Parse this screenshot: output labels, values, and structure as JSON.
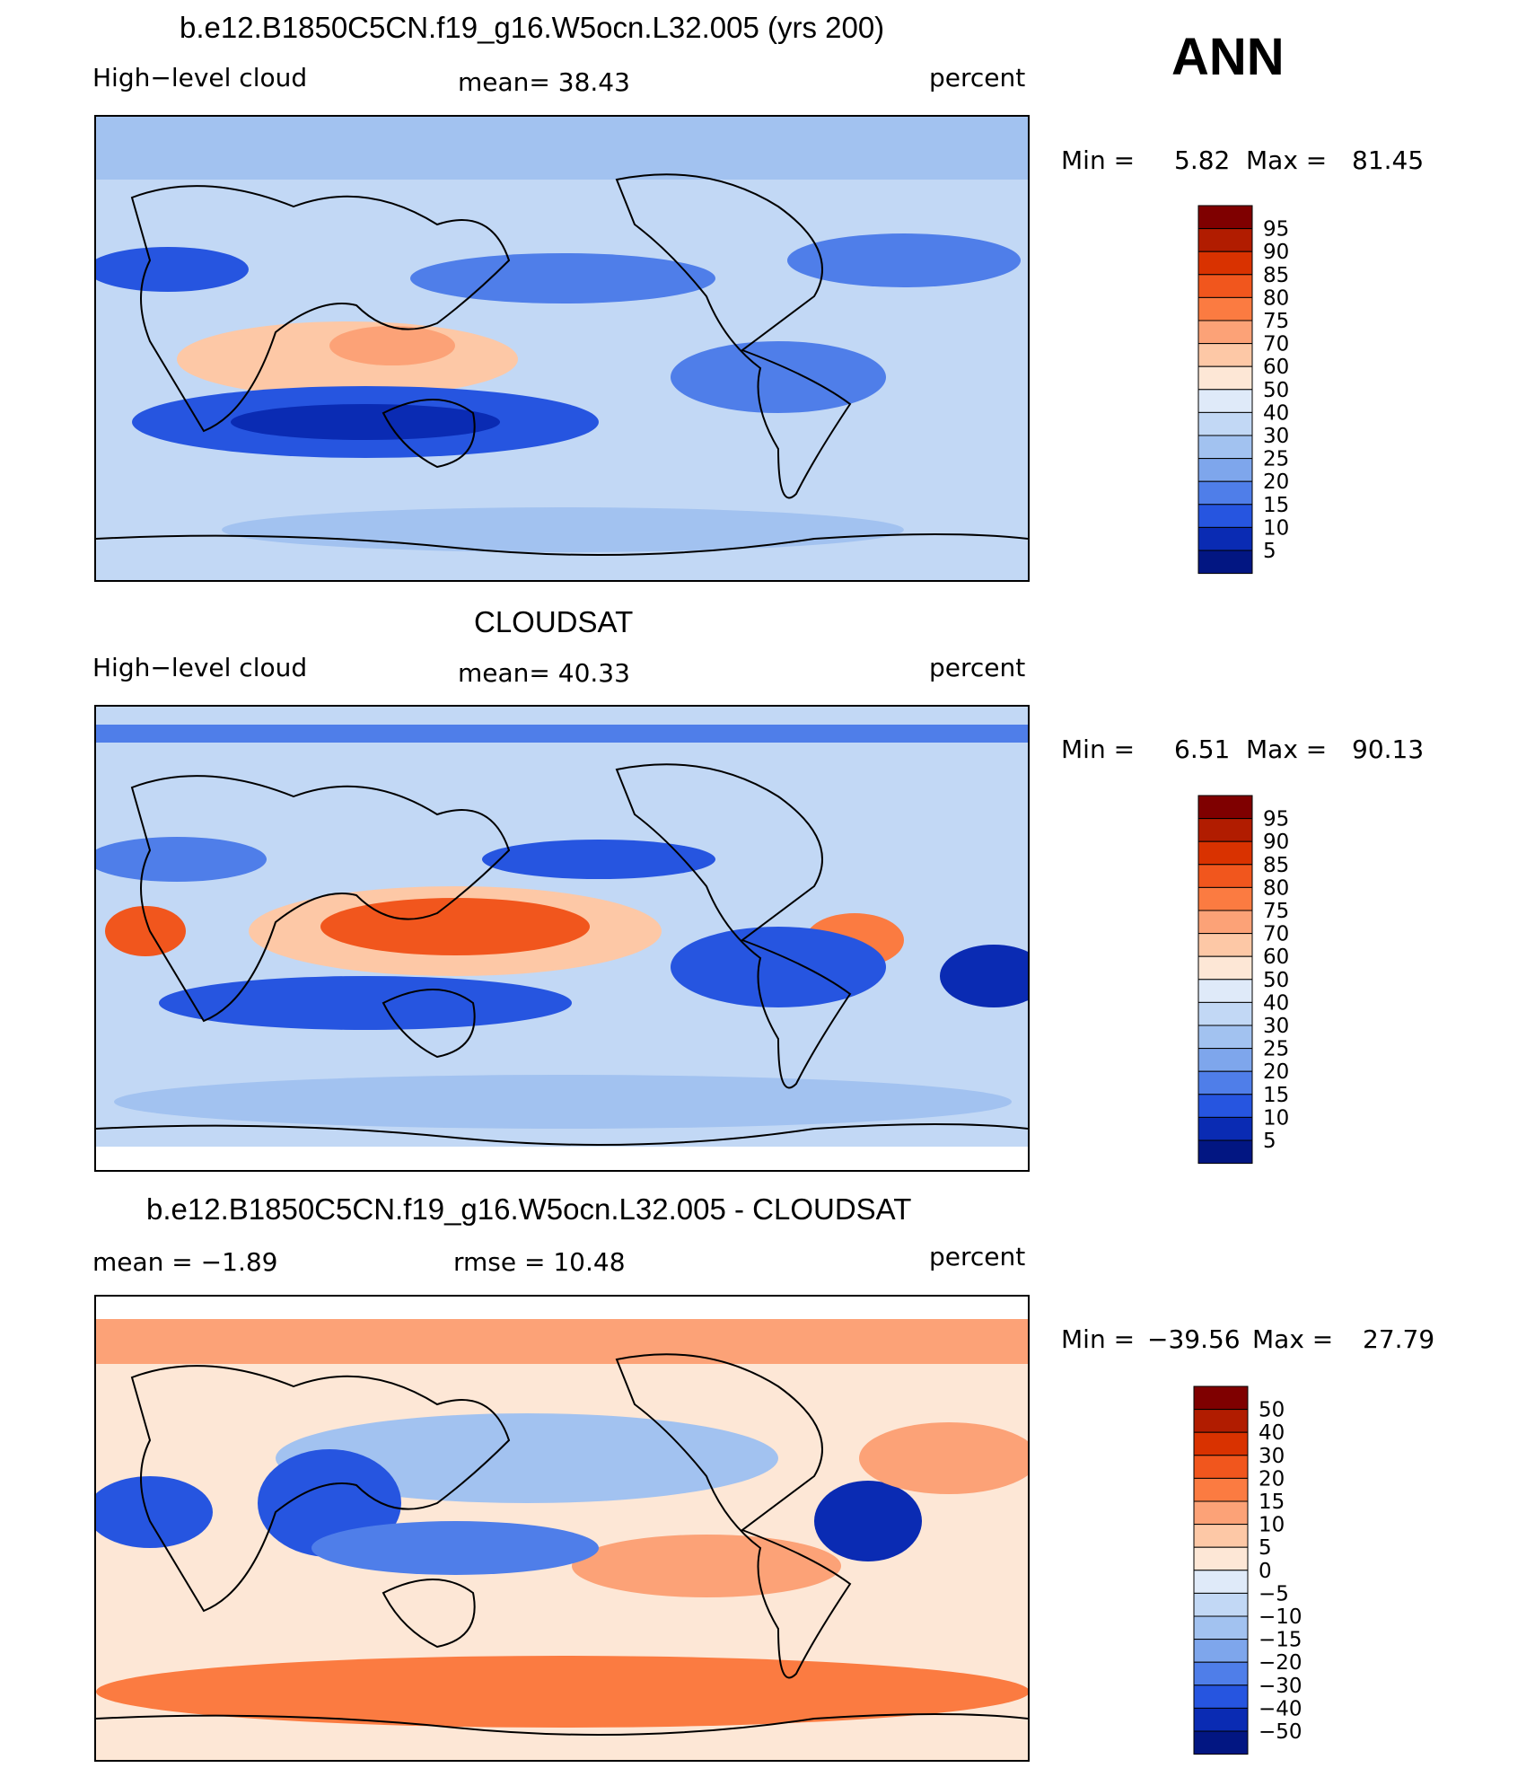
{
  "season": "ANN",
  "panels": [
    {
      "id": "model",
      "title": "b.e12.B1850C5CN.f19_g16.W5ocn.L32.005 (yrs 200)",
      "left_label": "High−level cloud",
      "center_label": "mean=   38.43",
      "units": "percent",
      "min_label": "Min =",
      "min_value": "5.82",
      "max_label": "Max =",
      "max_value": "81.45",
      "levels": [
        "95",
        "90",
        "85",
        "80",
        "75",
        "70",
        "60",
        "50",
        "40",
        "30",
        "25",
        "20",
        "15",
        "10",
        "5"
      ]
    },
    {
      "id": "obs",
      "title": "CLOUDSAT",
      "left_label": "High−level cloud",
      "center_label": "mean=   40.33",
      "units": "percent",
      "min_label": "Min =",
      "min_value": "6.51",
      "max_label": "Max =",
      "max_value": "90.13",
      "levels": [
        "95",
        "90",
        "85",
        "80",
        "75",
        "70",
        "60",
        "50",
        "40",
        "30",
        "25",
        "20",
        "15",
        "10",
        "5"
      ]
    },
    {
      "id": "diff",
      "title": "b.e12.B1850C5CN.f19_g16.W5ocn.L32.005 - CLOUDSAT",
      "left_label": "mean =   −1.89",
      "center_label": "rmse =    10.48",
      "units": "percent",
      "min_label": "Min =",
      "min_value": "−39.56",
      "max_label": "Max =",
      "max_value": "27.79",
      "levels": [
        "50",
        "40",
        "30",
        "20",
        "15",
        "10",
        "5",
        "0",
        "−5",
        "−10",
        "−15",
        "−20",
        "−30",
        "−40",
        "−50"
      ]
    }
  ],
  "colors": {
    "scale": [
      "#7f0000",
      "#b11c00",
      "#d93200",
      "#f1561d",
      "#fb7b41",
      "#fca277",
      "#fdc8a6",
      "#fde7d6",
      "#dfeaf9",
      "#c2d8f5",
      "#a2c2f0",
      "#7ea6ec",
      "#4f7ee9",
      "#2655e0",
      "#0a2bb3",
      "#021682"
    ]
  }
}
